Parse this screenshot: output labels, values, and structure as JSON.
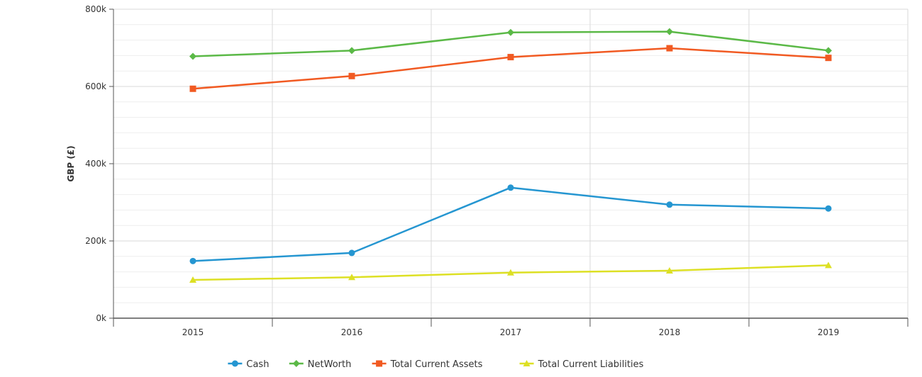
{
  "chart_data": {
    "type": "line",
    "title": "",
    "xlabel": "",
    "ylabel": "GBP (£)",
    "categories": [
      "2015",
      "2016",
      "2017",
      "2018",
      "2019"
    ],
    "ylim": [
      0,
      800000
    ],
    "y_ticks": [
      0,
      200000,
      400000,
      600000,
      800000
    ],
    "y_tick_labels": [
      "0k",
      "200k",
      "400k",
      "600k",
      "800k"
    ],
    "grid": true,
    "legend_position": "bottom",
    "series": [
      {
        "name": "Cash",
        "color": "#2596d1",
        "marker": "circle",
        "values": [
          148000,
          169000,
          338000,
          294000,
          284000
        ]
      },
      {
        "name": "NetWorth",
        "color": "#5bb947",
        "marker": "diamond",
        "values": [
          678000,
          693000,
          740000,
          742000,
          693000
        ]
      },
      {
        "name": "Total Current Assets",
        "color": "#f15a22",
        "marker": "square",
        "values": [
          594000,
          627000,
          676000,
          699000,
          674000
        ]
      },
      {
        "name": "Total Current Liabilities",
        "color": "#dde024",
        "marker": "triangle",
        "values": [
          99000,
          106000,
          118000,
          123000,
          137000
        ]
      }
    ]
  }
}
